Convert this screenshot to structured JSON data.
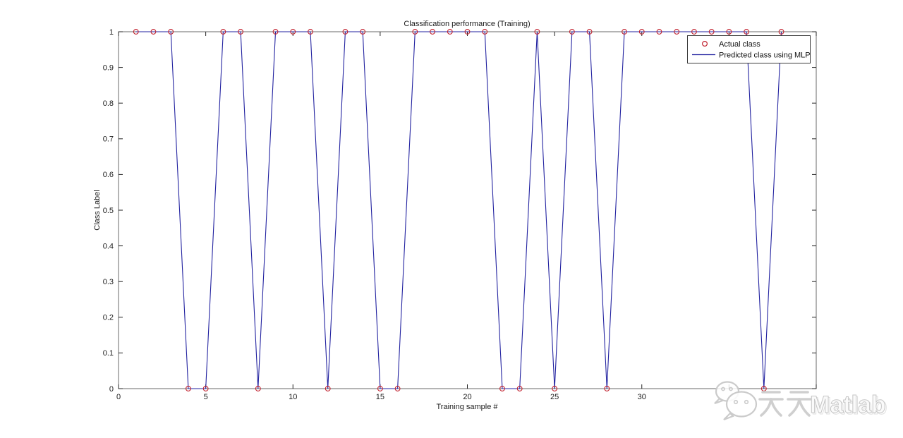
{
  "chart_data": {
    "type": "line",
    "title": "Classification performance (Training)",
    "xlabel": "Training sample #",
    "ylabel": "Class Label",
    "xlim": [
      0,
      40
    ],
    "ylim": [
      0,
      1
    ],
    "grid": false,
    "legend_position": "top-right",
    "xticks": [
      0,
      5,
      10,
      15,
      20,
      25,
      30,
      35,
      40
    ],
    "xtick_labels": [
      "0",
      "5",
      "10",
      "15",
      "20",
      "25",
      "30",
      "",
      ""
    ],
    "yticks": [
      0,
      0.1,
      0.2,
      0.3,
      0.4,
      0.5,
      0.6,
      0.7,
      0.8,
      0.9,
      1
    ],
    "ytick_labels": [
      "0",
      "0.1",
      "0.2",
      "0.3",
      "0.4",
      "0.5",
      "0.6",
      "0.7",
      "0.8",
      "0.9",
      "1"
    ],
    "x": [
      1,
      2,
      3,
      4,
      5,
      6,
      7,
      8,
      9,
      10,
      11,
      12,
      13,
      14,
      15,
      16,
      17,
      18,
      19,
      20,
      21,
      22,
      23,
      24,
      25,
      26,
      27,
      28,
      29,
      30,
      31,
      32,
      33,
      34,
      35,
      36,
      37,
      38
    ],
    "series": [
      {
        "name": "Actual class",
        "plot": "scatter",
        "marker": "circle",
        "color": "#c22330",
        "values": [
          1,
          1,
          1,
          0,
          0,
          1,
          1,
          0,
          1,
          1,
          1,
          0,
          1,
          1,
          0,
          0,
          1,
          1,
          1,
          1,
          1,
          0,
          0,
          1,
          0,
          1,
          1,
          0,
          1,
          1,
          1,
          1,
          1,
          1,
          1,
          1,
          0,
          1
        ]
      },
      {
        "name": "Predicted class using MLP",
        "plot": "line",
        "color": "#2222a0",
        "values": [
          1,
          1,
          1,
          0,
          0,
          1,
          1,
          0,
          1,
          1,
          1,
          0,
          1,
          1,
          0,
          0,
          1,
          1,
          1,
          1,
          1,
          0,
          0,
          1,
          0,
          1,
          1,
          0,
          1,
          1,
          1,
          1,
          1,
          1,
          1,
          1,
          0,
          1
        ]
      }
    ]
  },
  "watermark": {
    "text": "天天Matlab",
    "latin_part": "Matlab",
    "logo": "wechat-logo"
  }
}
